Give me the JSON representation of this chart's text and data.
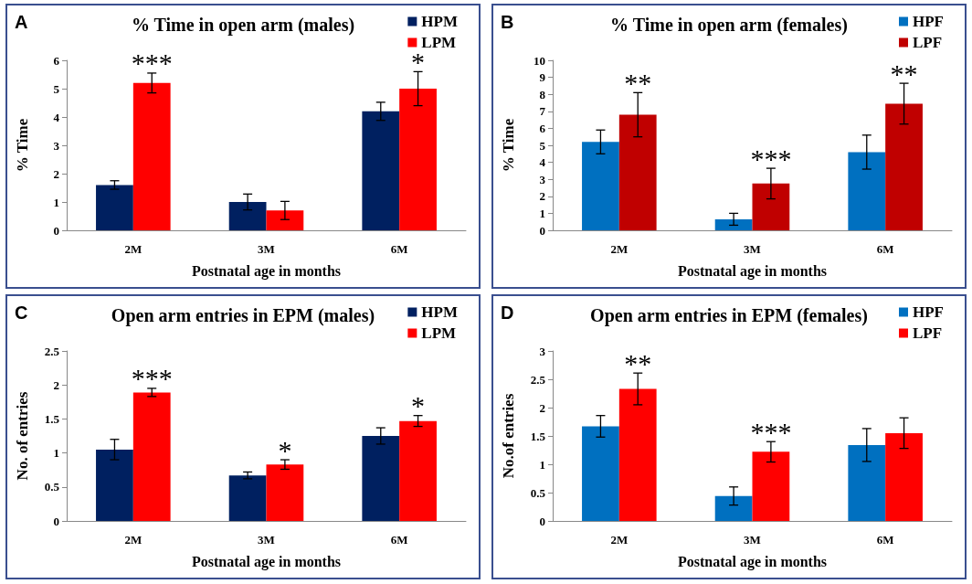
{
  "chart_data": [
    {
      "type": "bar",
      "title": "% Time in open arm (males)",
      "xlabel": "Postnatal age in months",
      "ylabel": "% Time",
      "categories": [
        "2M",
        "3M",
        "6M"
      ],
      "series": [
        {
          "name": "HPM",
          "color": "#002060",
          "values": [
            1.6,
            1.0,
            4.2
          ],
          "errors": [
            0.15,
            0.28,
            0.32
          ]
        },
        {
          "name": "LPM",
          "color": "#ff0000",
          "values": [
            5.2,
            0.7,
            5.0
          ],
          "errors": [
            0.35,
            0.32,
            0.6
          ]
        }
      ],
      "ylim": [
        0,
        6
      ],
      "yticks": [
        0,
        1,
        2,
        3,
        4,
        5,
        6
      ],
      "grid": false,
      "legend": "top right",
      "annotations": [
        "A",
        {
          "text": "***",
          "x": "2M",
          "y": 5.2
        },
        {
          "text": "*",
          "x": "6M",
          "y": 5.0
        }
      ]
    },
    {
      "type": "bar",
      "title": "% Time in open arm (females)",
      "xlabel": "Postnatal age in months",
      "ylabel": "% Time",
      "categories": [
        "2M",
        "3M",
        "6M"
      ],
      "series": [
        {
          "name": "HPF",
          "color": "#0070c0",
          "values": [
            5.2,
            0.65,
            4.6
          ],
          "errors": [
            0.7,
            0.35,
            1.0
          ]
        },
        {
          "name": "LPF",
          "color": "#c00000",
          "values": [
            6.8,
            2.75,
            7.45
          ],
          "errors": [
            1.3,
            0.9,
            1.2
          ]
        }
      ],
      "ylim": [
        0,
        10
      ],
      "yticks": [
        0,
        1,
        2,
        3,
        4,
        5,
        6,
        7,
        8,
        9,
        10
      ],
      "grid": false,
      "legend": "top right",
      "annotations": [
        "B",
        {
          "text": "**",
          "x": "2M",
          "y": 6.8
        },
        {
          "text": "***",
          "x": "3M",
          "y": 2.75
        },
        {
          "text": "**",
          "x": "6M",
          "y": 7.45
        }
      ]
    },
    {
      "type": "bar",
      "title": "Open arm entries in EPM (males)",
      "xlabel": "Postnatal age in months",
      "ylabel": "No. of entries",
      "categories": [
        "2M",
        "3M",
        "6M"
      ],
      "series": [
        {
          "name": "HPM",
          "color": "#002060",
          "values": [
            1.05,
            0.67,
            1.25
          ],
          "errors": [
            0.15,
            0.05,
            0.12
          ]
        },
        {
          "name": "LPM",
          "color": "#ff0000",
          "values": [
            1.89,
            0.83,
            1.47
          ],
          "errors": [
            0.06,
            0.07,
            0.08
          ]
        }
      ],
      "ylim": [
        0,
        2.5
      ],
      "yticks": [
        0,
        0.5,
        1,
        1.5,
        2,
        2.5
      ],
      "grid": false,
      "legend": "top right",
      "annotations": [
        "C",
        {
          "text": "***",
          "x": "2M",
          "y": 1.89
        },
        {
          "text": "*",
          "x": "3M",
          "y": 0.83
        },
        {
          "text": "*",
          "x": "6M",
          "y": 1.47
        }
      ]
    },
    {
      "type": "bar",
      "title": "Open arm entries in EPM (females)",
      "xlabel": "Postnatal age in months",
      "ylabel": "No.of entries",
      "categories": [
        "2M",
        "3M",
        "6M"
      ],
      "series": [
        {
          "name": "HPF",
          "color": "#0070c0",
          "values": [
            1.67,
            0.44,
            1.34
          ],
          "errors": [
            0.19,
            0.16,
            0.29
          ]
        },
        {
          "name": "LPF",
          "color": "#ff0000",
          "values": [
            2.33,
            1.22,
            1.55
          ],
          "errors": [
            0.28,
            0.18,
            0.27
          ]
        }
      ],
      "ylim": [
        0,
        3
      ],
      "yticks": [
        0,
        0.5,
        1,
        1.5,
        2,
        2.5,
        3
      ],
      "grid": false,
      "legend": "top right",
      "annotations": [
        "D",
        {
          "text": "**",
          "x": "2M",
          "y": 2.33
        },
        {
          "text": "***",
          "x": "3M",
          "y": 1.22
        }
      ]
    }
  ]
}
